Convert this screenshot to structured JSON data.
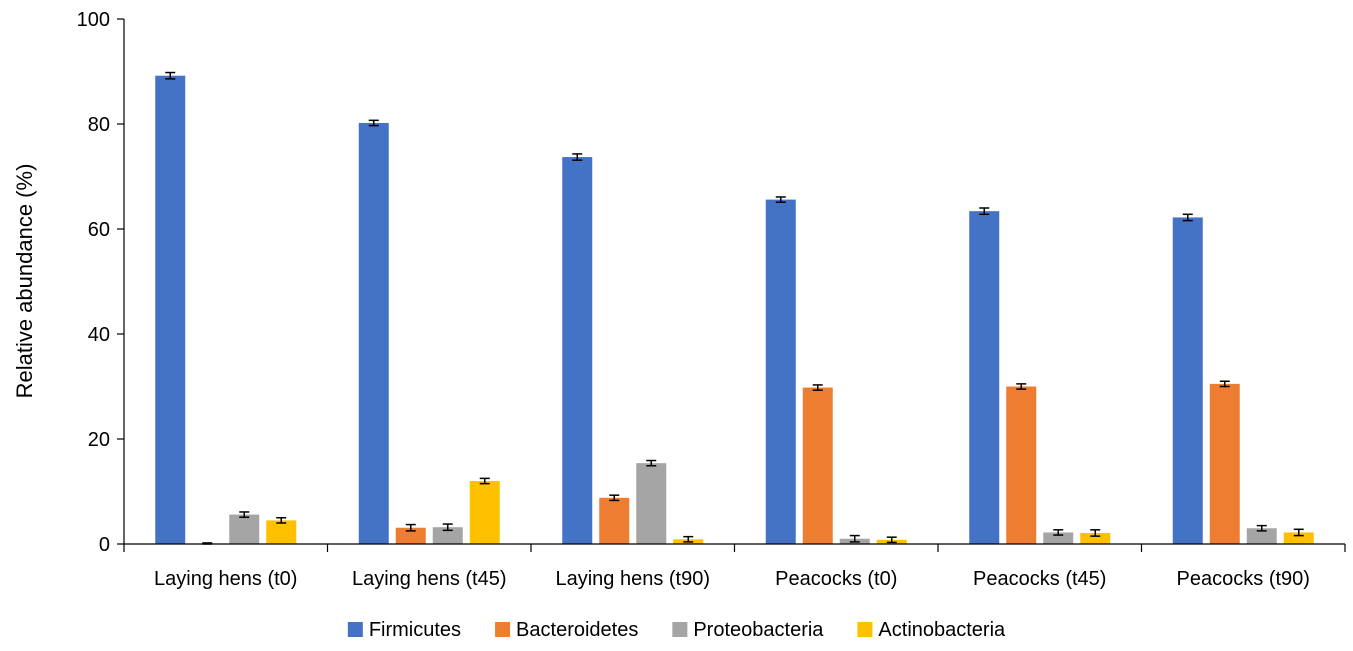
{
  "chart_data": {
    "type": "bar",
    "ylabel": "Relative abundance (%)",
    "xlabel": "",
    "ylim": [
      0,
      100
    ],
    "yticks": [
      0,
      20,
      40,
      60,
      80,
      100
    ],
    "grid": false,
    "legend": "bottom",
    "categories": [
      "Laying hens (t0)",
      "Laying hens (t45)",
      "Laying hens (t90)",
      "Peacocks (t0)",
      "Peacocks (t45)",
      "Peacocks (t90)"
    ],
    "series": [
      {
        "name": "Firmicutes",
        "color": "#4472C4",
        "values": [
          89.2,
          80.2,
          73.7,
          65.6,
          63.4,
          62.2
        ],
        "errors": [
          0.6,
          0.5,
          0.6,
          0.5,
          0.6,
          0.6
        ]
      },
      {
        "name": "Bacteroidetes",
        "color": "#ED7D31",
        "values": [
          0.1,
          3.1,
          8.8,
          29.8,
          30.0,
          30.5
        ],
        "errors": [
          0.1,
          0.6,
          0.5,
          0.5,
          0.5,
          0.5
        ]
      },
      {
        "name": "Proteobacteria",
        "color": "#A5A5A5",
        "values": [
          5.6,
          3.2,
          15.4,
          1.0,
          2.2,
          3.0
        ],
        "errors": [
          0.5,
          0.6,
          0.5,
          0.6,
          0.5,
          0.5
        ]
      },
      {
        "name": "Actinobacteria",
        "color": "#FFC000",
        "values": [
          4.5,
          12.0,
          0.9,
          0.8,
          2.1,
          2.2
        ],
        "errors": [
          0.5,
          0.5,
          0.5,
          0.5,
          0.6,
          0.6
        ]
      }
    ]
  }
}
